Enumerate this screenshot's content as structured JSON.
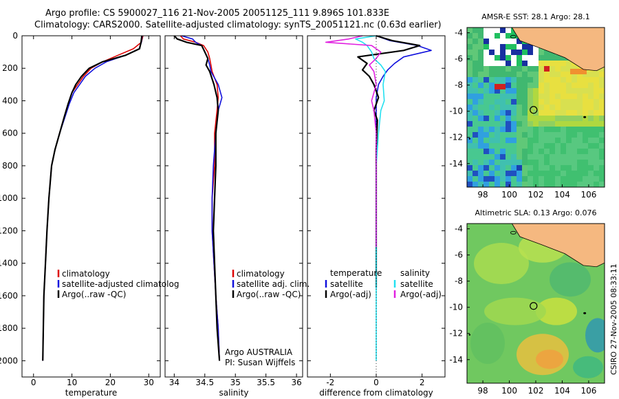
{
  "header": {
    "line1": "Argo profile: CS 5900027_116 21-Nov-2005 20051125_111 9.896S 101.833E",
    "line2": "Climatology: CARS2000. Satellite-adjusted climatology: synTS_20051121.nc (0.63d earlier)"
  },
  "colors": {
    "climatology": "#dd0000",
    "satellite": "#1010dd",
    "argo": "#000000",
    "salinity_satellite": "#22e0f0",
    "salinity_argo": "#e020e0"
  },
  "chart_data": [
    {
      "id": "temperature",
      "type": "line",
      "xlabel": "temperature",
      "ylabel": "",
      "xlim": [
        -3,
        33
      ],
      "ylim": [
        2100,
        0
      ],
      "xticks": [
        "0",
        "10",
        "20",
        "30"
      ],
      "yticks": [
        "0",
        "200",
        "400",
        "600",
        "800",
        "1000",
        "1200",
        "1400",
        "1600",
        "1800",
        "2000"
      ],
      "legend": [
        "climatology",
        "satellite-adjusted climatolog",
        "Argo(..raw -QC)"
      ],
      "series": [
        {
          "name": "climatology",
          "color": "climatology",
          "x": [
            28.5,
            28.1,
            26,
            22,
            18,
            15,
            13,
            11.5,
            10,
            9,
            8,
            6.8,
            5.6,
            4.7,
            4,
            3.5,
            3.1,
            2.7,
            2.4
          ],
          "y": [
            0,
            40,
            80,
            120,
            160,
            200,
            250,
            300,
            350,
            420,
            500,
            600,
            700,
            800,
            1000,
            1200,
            1400,
            1600,
            2000
          ]
        },
        {
          "name": "satellite-adjusted climatology",
          "color": "satellite",
          "x": [
            28.3,
            28.1,
            27.5,
            24,
            19,
            16,
            13.5,
            12,
            10.5,
            9.3,
            8.2,
            6.8,
            5.6,
            4.7,
            4,
            3.5,
            3.1,
            2.7,
            2.4
          ],
          "y": [
            0,
            40,
            80,
            120,
            160,
            200,
            250,
            300,
            350,
            420,
            500,
            600,
            700,
            800,
            1000,
            1200,
            1400,
            1600,
            2000
          ]
        },
        {
          "name": "Argo(..raw -QC)",
          "color": "argo",
          "x": [
            28.2,
            28,
            27.6,
            24,
            18,
            14.5,
            12.5,
            11,
            10,
            9,
            8,
            6.8,
            5.6,
            4.7,
            4,
            3.5,
            3.1,
            2.7,
            2.4
          ],
          "y": [
            0,
            40,
            80,
            120,
            160,
            200,
            250,
            300,
            350,
            420,
            500,
            600,
            700,
            800,
            1000,
            1200,
            1400,
            1600,
            2000
          ]
        }
      ]
    },
    {
      "id": "salinity",
      "type": "line",
      "xlabel": "salinity",
      "xlim": [
        33.85,
        36.1
      ],
      "ylim": [
        2100,
        0
      ],
      "xticks": [
        "34",
        "34.5",
        "35",
        "35.5",
        "36"
      ],
      "legend": [
        "climatology",
        "satellite adj. clim.",
        "Argo(..raw -QC)"
      ],
      "annotation": [
        "Argo AUSTRALIA",
        "PI: Susan Wijffels"
      ],
      "series": [
        {
          "name": "climatology",
          "color": "climatology",
          "x": [
            34.1,
            34.15,
            34.35,
            34.48,
            34.55,
            34.58,
            34.6,
            34.62,
            34.7,
            34.72,
            34.7,
            34.66,
            34.66,
            34.62,
            34.62,
            34.65,
            34.68,
            34.72,
            34.74
          ],
          "y": [
            0,
            20,
            40,
            60,
            100,
            140,
            180,
            220,
            300,
            380,
            460,
            600,
            800,
            1000,
            1200,
            1400,
            1600,
            1800,
            2000
          ]
        },
        {
          "name": "satellite adj. clim.",
          "color": "satellite",
          "x": [
            34.12,
            34.3,
            34.35,
            34.45,
            34.5,
            34.55,
            34.58,
            34.6,
            34.72,
            34.78,
            34.72,
            34.68,
            34.64,
            34.62,
            34.62,
            34.65,
            34.68,
            34.72,
            34.74
          ],
          "y": [
            0,
            20,
            40,
            60,
            100,
            140,
            180,
            220,
            300,
            380,
            460,
            600,
            800,
            1000,
            1200,
            1400,
            1600,
            1800,
            2000
          ]
        },
        {
          "name": "Argo(..raw -QC)",
          "color": "argo",
          "x": [
            34.0,
            34.05,
            34.2,
            34.45,
            34.5,
            34.55,
            34.52,
            34.58,
            34.65,
            34.7,
            34.72,
            34.68,
            34.68,
            34.66,
            34.64,
            34.66,
            34.68,
            34.7,
            34.74
          ],
          "y": [
            0,
            20,
            40,
            60,
            100,
            140,
            180,
            220,
            300,
            380,
            460,
            600,
            800,
            1000,
            1200,
            1400,
            1600,
            1800,
            2000
          ]
        }
      ]
    },
    {
      "id": "difference",
      "type": "line",
      "xlabel": "difference from climatology",
      "xlim": [
        -3,
        3
      ],
      "ylim": [
        2100,
        0
      ],
      "xticks": [
        "-2",
        "0",
        "2"
      ],
      "legend_temperature_title": "temperature",
      "legend_temperature": [
        "satellite",
        "Argo(-adj)"
      ],
      "legend_salinity_title": "salinity",
      "legend_salinity": [
        "satellite",
        "Argo(-adj)"
      ],
      "series": [
        {
          "name": "temperature satellite",
          "color": "satellite",
          "x": [
            0,
            0.6,
            1.8,
            2.4,
            1.2,
            0.8,
            0.5,
            0.3,
            0.1,
            0.0,
            0.0,
            0.0,
            0.0,
            0.0,
            0.0,
            0.0,
            0.0
          ],
          "y": [
            0,
            30,
            60,
            90,
            130,
            170,
            210,
            250,
            300,
            380,
            460,
            520,
            700,
            900,
            1200,
            1500,
            1550
          ]
        },
        {
          "name": "temperature Argo(-adj)",
          "color": "argo",
          "x": [
            0,
            0.7,
            1.9,
            1.2,
            -0.8,
            -0.4,
            -0.6,
            -0.3,
            -0.1,
            0.1,
            -0.1,
            0.05,
            0.0,
            0.0,
            0.0,
            0.0,
            0.0
          ],
          "y": [
            0,
            30,
            60,
            90,
            130,
            170,
            210,
            250,
            300,
            380,
            460,
            520,
            700,
            900,
            1200,
            1500,
            1550
          ]
        },
        {
          "name": "salinity satellite",
          "color": "salinity_satellite",
          "x": [
            0,
            -0.9,
            -0.6,
            -0.4,
            -0.2,
            -0.1,
            0.2,
            0.4,
            0.3,
            0.35,
            0.2,
            0.1,
            0.0,
            0.0,
            0.0,
            0.0,
            0.0
          ],
          "y": [
            0,
            20,
            40,
            60,
            100,
            140,
            180,
            220,
            300,
            400,
            460,
            600,
            800,
            1000,
            1400,
            1800,
            2000
          ]
        },
        {
          "name": "salinity Argo(-adj)",
          "color": "salinity_argo",
          "x": [
            -0.6,
            -1.2,
            -2.2,
            -0.2,
            0.2,
            0.0,
            -0.3,
            -0.1,
            0.0,
            -0.2,
            -0.1,
            0.0,
            0.0,
            0.0,
            0.0
          ],
          "y": [
            0,
            20,
            40,
            60,
            100,
            140,
            180,
            220,
            300,
            400,
            460,
            600,
            800,
            1000,
            1300
          ]
        }
      ]
    },
    {
      "id": "sst-map",
      "type": "heatmap",
      "title": "AMSR-E SST: 28.1 Argo: 28.1",
      "xticks": [
        "98",
        "100",
        "102",
        "104",
        "106"
      ],
      "yticks": [
        "-4",
        "-6",
        "-8",
        "-10",
        "-12",
        "-14"
      ],
      "xlim": [
        96.8,
        107.2
      ],
      "ylim": [
        -15.8,
        -3.6
      ],
      "argo_position": [
        101.833,
        -9.896
      ]
    },
    {
      "id": "sla-map",
      "type": "heatmap",
      "title": "Altimetric SLA: 0.13 Argo: 0.076",
      "xticks": [
        "98",
        "100",
        "102",
        "104",
        "106"
      ],
      "yticks": [
        "-4",
        "-6",
        "-8",
        "-10",
        "-12",
        "-14"
      ],
      "xlim": [
        96.8,
        107.2
      ],
      "ylim": [
        -15.8,
        -3.6
      ],
      "argo_position": [
        101.833,
        -9.896
      ]
    }
  ],
  "footer": {
    "stamp": "CSIRO 27-Nov-2005 08:33:11"
  }
}
